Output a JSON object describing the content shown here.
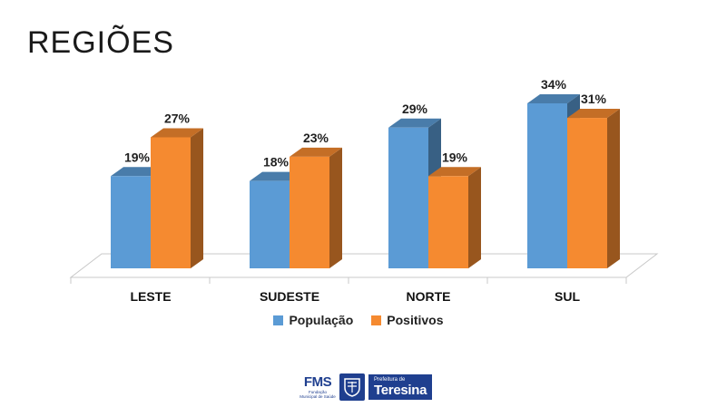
{
  "slide": {
    "title": "REGIÕES"
  },
  "chart_data": {
    "type": "bar",
    "style": "3d-clustered-column",
    "categories": [
      "LESTE",
      "SUDESTE",
      "NORTE",
      "SUL"
    ],
    "series": [
      {
        "name": "População",
        "values": [
          19,
          18,
          29,
          34
        ],
        "labels": [
          "19%",
          "18%",
          "29%",
          "34%"
        ],
        "color": "#5B9BD5"
      },
      {
        "name": "Positivos",
        "values": [
          27,
          23,
          19,
          31
        ],
        "labels": [
          "27%",
          "23%",
          "19%",
          "31%"
        ],
        "color": "#F58A30"
      }
    ],
    "ylim": [
      0,
      34
    ],
    "grid": false,
    "legend_position": "bottom"
  },
  "footer": {
    "fms_text": "FMS",
    "fms_subtitle": "Fundação Municipal de Saúde",
    "prefeitura_small": "Prefeitura de",
    "prefeitura_city": "Teresina"
  }
}
